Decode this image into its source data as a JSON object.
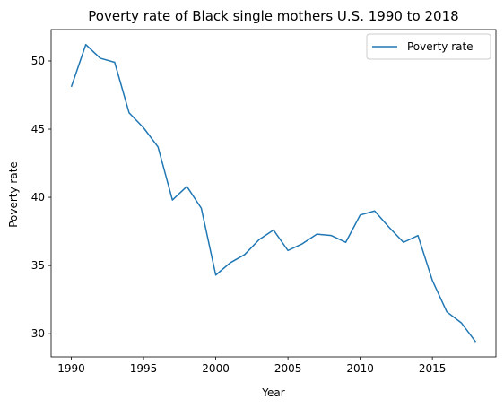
{
  "chart_data": {
    "type": "line",
    "title": "Poverty rate of Black single mothers U.S. 1990 to 2018",
    "xlabel": "Year",
    "ylabel": "Poverty rate",
    "xlim": [
      1988.6,
      2019.4
    ],
    "ylim": [
      28.3,
      52.3
    ],
    "xticks": [
      1990,
      1995,
      2000,
      2005,
      2010,
      2015
    ],
    "yticks": [
      30,
      35,
      40,
      45,
      50
    ],
    "grid": false,
    "legend": "top-right",
    "line_color": "#1f77b4",
    "series": [
      {
        "name": "Poverty rate",
        "x": [
          1990,
          1991,
          1992,
          1993,
          1994,
          1995,
          1996,
          1997,
          1998,
          1999,
          2000,
          2001,
          2002,
          2003,
          2004,
          2005,
          2006,
          2007,
          2008,
          2009,
          2010,
          2011,
          2012,
          2013,
          2014,
          2015,
          2016,
          2017,
          2018
        ],
        "y": [
          48.1,
          51.2,
          50.2,
          49.9,
          46.2,
          45.1,
          43.7,
          39.8,
          40.8,
          39.2,
          34.3,
          35.2,
          35.8,
          36.9,
          37.6,
          36.1,
          36.6,
          37.3,
          37.2,
          36.7,
          38.7,
          39.0,
          37.8,
          36.7,
          37.2,
          33.9,
          31.6,
          30.8,
          29.4
        ]
      }
    ]
  }
}
